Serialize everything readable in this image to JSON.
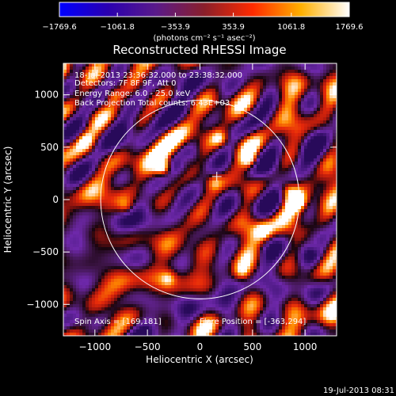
{
  "chart_data": {
    "type": "heatmap",
    "title": "Reconstructed RHESSI Image",
    "colorbar": {
      "ticks": [
        "-1769.6",
        "-1061.8",
        "-353.9",
        "353.9",
        "1061.8",
        "1769.6"
      ],
      "range": [
        -1769.6,
        1769.6
      ],
      "unit_label": "(photons cm⁻² s⁻¹ asec⁻²)",
      "colors": [
        "#0000ff",
        "#2a00b0",
        "#5a1a8a",
        "#8a1f2a",
        "#ff2a00",
        "#ffb000",
        "#ffffff"
      ]
    },
    "xlabel": "Heliocentric X (arcsec)",
    "ylabel": "Heliocentric Y (arcsec)",
    "xlim": [
      -1300,
      1300
    ],
    "ylim": [
      -1300,
      1300
    ],
    "xticks": [
      {
        "v": -1000,
        "label": "−1000"
      },
      {
        "v": -500,
        "label": "−500"
      },
      {
        "v": 0,
        "label": "0"
      },
      {
        "v": 500,
        "label": "500"
      },
      {
        "v": 1000,
        "label": "1000"
      }
    ],
    "yticks": [
      {
        "v": 1000,
        "label": "1000"
      },
      {
        "v": 500,
        "label": "500"
      },
      {
        "v": 0,
        "label": "0"
      },
      {
        "v": -500,
        "label": "−500"
      },
      {
        "v": -1000,
        "label": "−1000"
      }
    ],
    "solar_limb_radius_arcsec": 945,
    "flare_marker": [
      160,
      220
    ],
    "info_lines": [
      "18-Jul-2013 23:36:32.000 to 23:38:32.000",
      "Detectors: 7F 8F 9F, Att 0",
      "Energy Range: 6.0 - 25.0 keV",
      "Back Projection    Total counts: 6.43E+03"
    ],
    "spin_axis": "Spin Axis = [169,181]",
    "flare_position": "Flare Position = [-363,294]",
    "timestamp": "19-Jul-2013 08:31",
    "bright_sources": [
      {
        "x": -350,
        "y": 300,
        "amp": 1.0
      },
      {
        "x": 920,
        "y": -20,
        "amp": 0.8
      },
      {
        "x": 480,
        "y": 370,
        "amp": 0.7
      },
      {
        "x": 190,
        "y": 580,
        "amp": 0.6
      },
      {
        "x": 830,
        "y": 90,
        "amp": 0.6
      },
      {
        "x": -830,
        "y": 1000,
        "amp": 0.55
      },
      {
        "x": 130,
        "y": 170,
        "amp": 0.5
      },
      {
        "x": -700,
        "y": -80,
        "amp": 0.55
      },
      {
        "x": 600,
        "y": -300,
        "amp": 0.5
      },
      {
        "x": -300,
        "y": -750,
        "amp": 0.5
      },
      {
        "x": -1100,
        "y": 560,
        "amp": 0.6
      },
      {
        "x": 1100,
        "y": -450,
        "amp": 0.55
      },
      {
        "x": -150,
        "y": 380,
        "amp": 0.45
      },
      {
        "x": 400,
        "y": -700,
        "amp": 0.45
      }
    ]
  }
}
